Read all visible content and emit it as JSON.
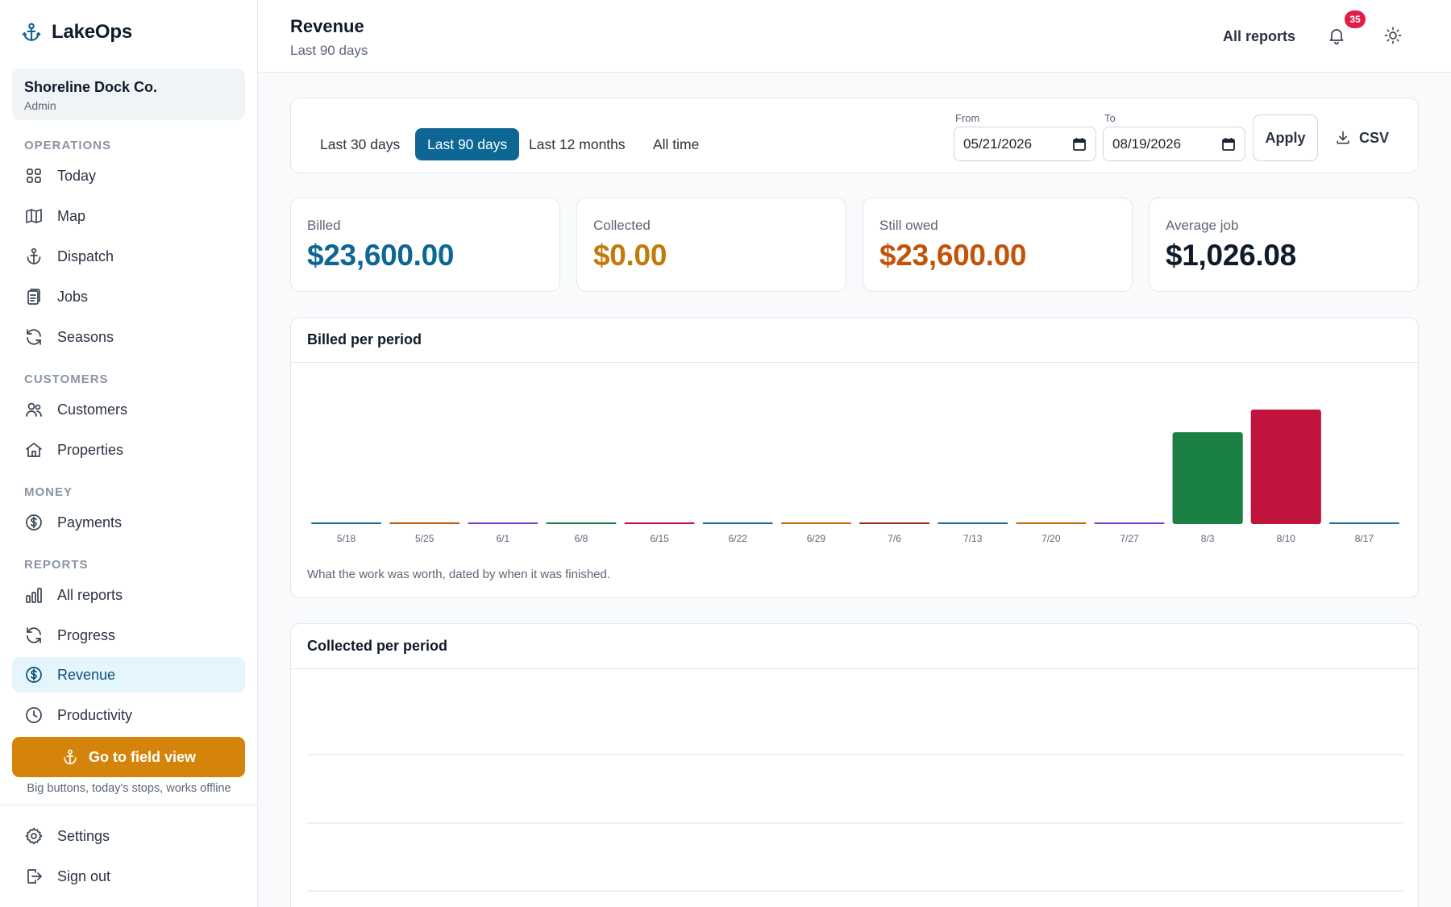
{
  "app": {
    "name": "LakeOps"
  },
  "org": {
    "name": "Shoreline Dock Co.",
    "role": "Admin"
  },
  "sidebar": {
    "sections": [
      {
        "label": "OPERATIONS"
      },
      {
        "label": "CUSTOMERS"
      },
      {
        "label": "MONEY"
      },
      {
        "label": "REPORTS"
      }
    ],
    "items": [
      {
        "label": "Today",
        "icon": "grid-icon"
      },
      {
        "label": "Map",
        "icon": "map-icon"
      },
      {
        "label": "Dispatch",
        "icon": "anchor-icon"
      },
      {
        "label": "Jobs",
        "icon": "clipboard-icon"
      },
      {
        "label": "Seasons",
        "icon": "refresh-icon"
      },
      {
        "label": "Customers",
        "icon": "users-icon"
      },
      {
        "label": "Properties",
        "icon": "home-icon"
      },
      {
        "label": "Payments",
        "icon": "dollar-circle-icon"
      },
      {
        "label": "All reports",
        "icon": "bar-chart-icon"
      },
      {
        "label": "Progress",
        "icon": "refresh-icon"
      },
      {
        "label": "Revenue",
        "icon": "dollar-circle-icon",
        "active": true
      },
      {
        "label": "Productivity",
        "icon": "clock-icon"
      }
    ],
    "field_button": "Go to field view",
    "field_caption": "Big buttons, today's stops, works offline",
    "bottom": [
      {
        "label": "Settings",
        "icon": "gear-icon"
      },
      {
        "label": "Sign out",
        "icon": "sign-out-icon"
      }
    ]
  },
  "header": {
    "title": "Revenue",
    "subtitle": "Last 90 days",
    "all_reports": "All reports",
    "notification_count": "35"
  },
  "filters": {
    "ranges": [
      "Last 30 days",
      "Last 90 days",
      "Last 12 months",
      "All time"
    ],
    "active_range": "Last 90 days",
    "from_label": "From",
    "from_value": "05/21/2026",
    "to_label": "To",
    "to_value": "08/19/2026",
    "apply": "Apply",
    "csv": "CSV"
  },
  "stats": [
    {
      "label": "Billed",
      "value": "$23,600.00",
      "color": "#0d6694"
    },
    {
      "label": "Collected",
      "value": "$0.00",
      "color": "#c27b0a"
    },
    {
      "label": "Still owed",
      "value": "$23,600.00",
      "color": "#c2540a"
    },
    {
      "label": "Average job",
      "value": "$1,026.08",
      "color": "#0f1b2a"
    }
  ],
  "charts": {
    "billed": {
      "title": "Billed per period",
      "caption": "What the work was worth, dated by when it was finished."
    },
    "collected": {
      "title": "Collected per period"
    }
  },
  "chart_data": [
    {
      "type": "bar",
      "title": "Billed per period",
      "categories": [
        "5/18",
        "5/25",
        "6/1",
        "6/8",
        "6/15",
        "6/22",
        "6/29",
        "7/6",
        "7/13",
        "7/20",
        "7/27",
        "8/3",
        "8/10",
        "8/17"
      ],
      "values": [
        0,
        0,
        0,
        0,
        0,
        0,
        0,
        0,
        0,
        0,
        0,
        10500,
        13100,
        0
      ],
      "colors": [
        "#1c6d96",
        "#c2540a",
        "#7e3fd0",
        "#1a8043",
        "#c0143c",
        "#1c6d96",
        "#c2680a",
        "#962a1d",
        "#1c6d96",
        "#c2680a",
        "#7e3fd0",
        "#1a8043",
        "#c0143c",
        "#1c6d96"
      ],
      "ylim": [
        0,
        13100
      ],
      "grid": false
    },
    {
      "type": "bar",
      "title": "Collected per period",
      "values": [],
      "grid": true
    }
  ]
}
